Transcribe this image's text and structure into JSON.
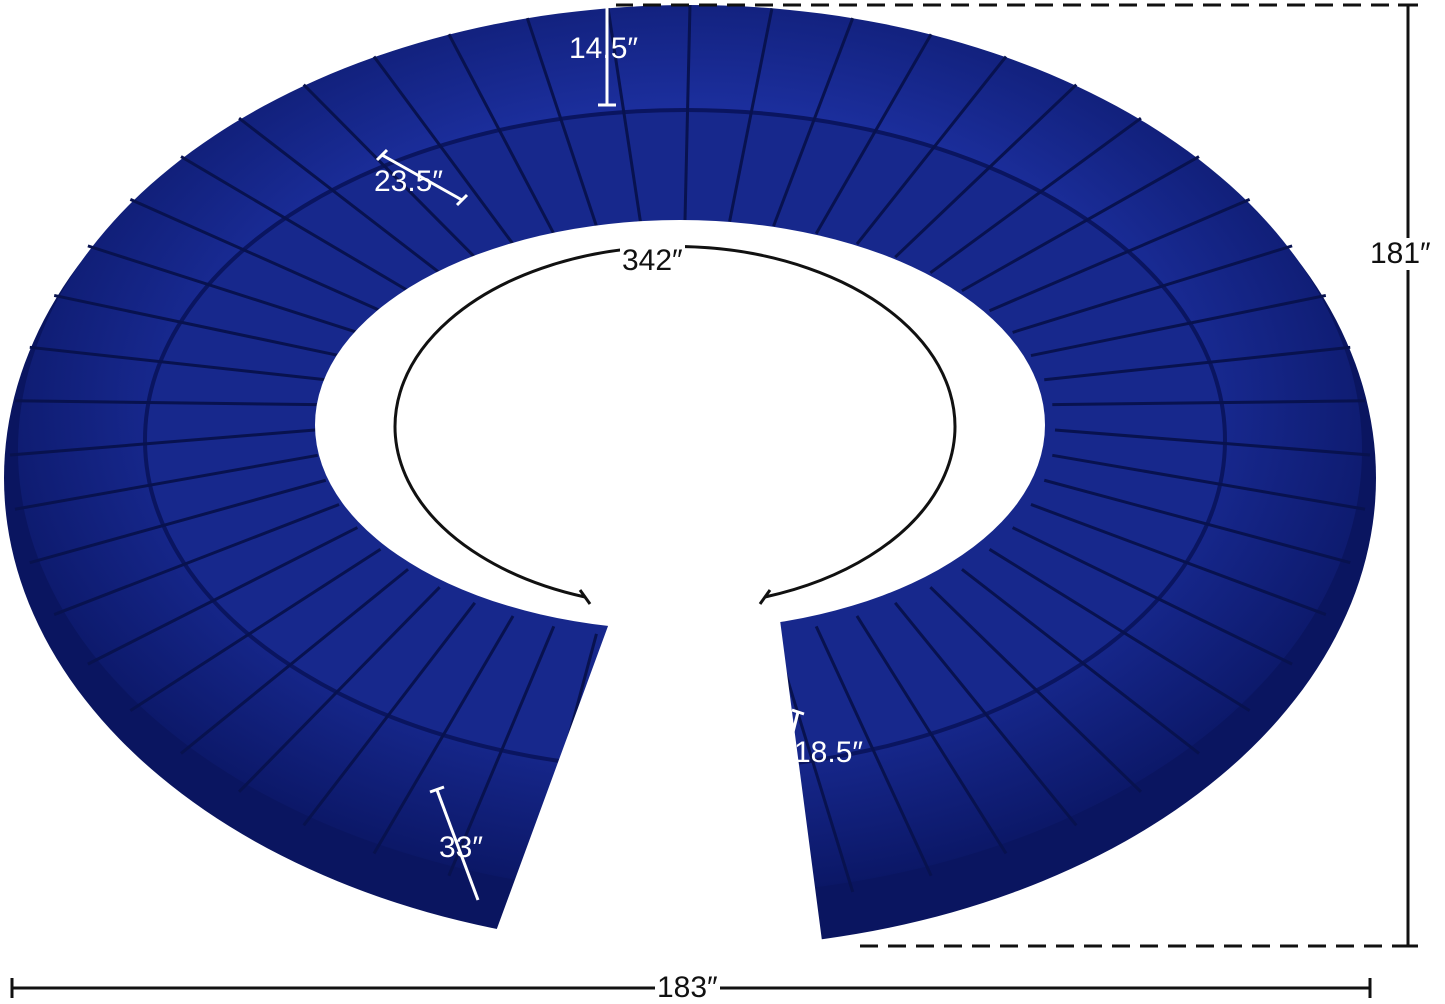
{
  "colors": {
    "upholstery": "#0f1f7a",
    "upholstery_light": "#1f35a8",
    "dimension_line": "#111111"
  },
  "dimensions": {
    "back_height": "14.5″",
    "seat_depth": "23.5″",
    "inner_circumference": "342″",
    "overall_depth": "181″",
    "seat_height": "18.5″",
    "overall_height": "33″",
    "overall_width": "183″"
  }
}
